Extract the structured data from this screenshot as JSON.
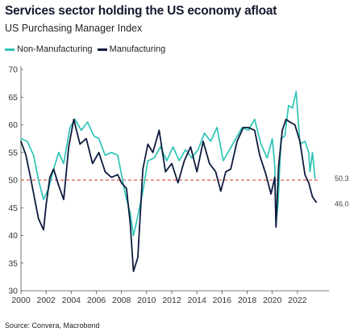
{
  "title": "Services sector holding the US economy afloat",
  "subtitle": "US Purchasing Manager Index",
  "source": "Source: Convera, Macrobond",
  "colors": {
    "non_manufacturing": "#2ec4b6",
    "manufacturing": "#0f1b3d",
    "reference_line": "#e05a4f"
  },
  "chart_data": {
    "type": "line",
    "title": "Services sector holding the US economy afloat",
    "subtitle": "US Purchasing Manager Index",
    "xlabel": "",
    "ylabel": "",
    "xlim": [
      2000,
      2024
    ],
    "ylim": [
      30,
      70
    ],
    "x_ticks": [
      "2000",
      "2002",
      "2004",
      "2006",
      "2008",
      "2010",
      "2012",
      "2014",
      "2016",
      "2018",
      "2020",
      "2022"
    ],
    "y_ticks": [
      30,
      35,
      40,
      45,
      50,
      55,
      60,
      65,
      70
    ],
    "reference_line": {
      "y": 50,
      "style": "dashed"
    },
    "legend_position": "top-left",
    "grid": false,
    "end_labels": [
      "50.3",
      "46.0"
    ],
    "series": [
      {
        "name": "Non-Manufacturing",
        "x": [
          2000.0,
          2000.5,
          2001.0,
          2001.4,
          2001.8,
          2002.2,
          2002.6,
          2003.0,
          2003.4,
          2003.9,
          2004.3,
          2004.8,
          2005.3,
          2005.8,
          2006.2,
          2006.7,
          2007.2,
          2007.7,
          2008.0,
          2008.3,
          2008.7,
          2008.95,
          2009.3,
          2009.7,
          2010.1,
          2010.6,
          2011.1,
          2011.6,
          2012.1,
          2012.6,
          2013.1,
          2013.6,
          2014.1,
          2014.6,
          2015.1,
          2015.6,
          2016.1,
          2016.6,
          2017.1,
          2017.6,
          2018.1,
          2018.6,
          2019.1,
          2019.6,
          2020.0,
          2020.2,
          2020.3,
          2020.45,
          2020.7,
          2021.0,
          2021.3,
          2021.6,
          2021.9,
          2022.2,
          2022.6,
          2022.9,
          2023.0,
          2023.2,
          2023.4
        ],
        "y": [
          57.5,
          57.0,
          54.5,
          50.0,
          46.5,
          48.5,
          52.0,
          55.0,
          53.0,
          59.5,
          61.0,
          59.0,
          60.5,
          58.0,
          57.5,
          54.5,
          55.0,
          54.5,
          51.0,
          47.5,
          44.0,
          40.0,
          43.5,
          48.0,
          53.5,
          54.0,
          56.0,
          53.5,
          56.0,
          53.5,
          55.5,
          54.0,
          55.5,
          58.5,
          57.0,
          59.5,
          53.5,
          55.5,
          57.5,
          59.5,
          59.0,
          61.0,
          56.5,
          54.0,
          57.5,
          52.5,
          42.0,
          45.5,
          57.5,
          58.0,
          63.5,
          63.0,
          66.0,
          56.5,
          57.0,
          55.0,
          51.5,
          55.0,
          50.3
        ]
      },
      {
        "name": "Manufacturing",
        "x": [
          2000.0,
          2000.4,
          2000.8,
          2001.1,
          2001.4,
          2001.8,
          2002.0,
          2002.3,
          2002.6,
          2003.0,
          2003.4,
          2003.8,
          2004.2,
          2004.7,
          2005.2,
          2005.7,
          2006.2,
          2006.7,
          2007.2,
          2007.7,
          2008.0,
          2008.4,
          2008.7,
          2008.95,
          2009.3,
          2009.7,
          2010.1,
          2010.5,
          2011.0,
          2011.5,
          2012.0,
          2012.5,
          2013.0,
          2013.5,
          2014.0,
          2014.5,
          2015.0,
          2015.5,
          2015.9,
          2016.3,
          2016.7,
          2017.2,
          2017.7,
          2018.1,
          2018.6,
          2019.0,
          2019.5,
          2019.9,
          2020.2,
          2020.3,
          2020.5,
          2020.8,
          2021.1,
          2021.4,
          2021.8,
          2022.2,
          2022.6,
          2022.9,
          2023.2,
          2023.5
        ],
        "y": [
          57.0,
          54.5,
          50.0,
          46.5,
          43.0,
          41.0,
          45.5,
          50.5,
          52.0,
          49.0,
          46.5,
          56.0,
          61.0,
          56.5,
          57.5,
          53.0,
          55.0,
          51.5,
          50.5,
          51.0,
          49.5,
          48.5,
          42.0,
          33.5,
          36.0,
          52.0,
          56.5,
          55.0,
          59.0,
          51.5,
          53.0,
          49.5,
          53.5,
          56.0,
          51.5,
          57.0,
          53.0,
          51.5,
          48.0,
          51.5,
          52.0,
          57.0,
          59.5,
          59.5,
          59.0,
          54.5,
          51.0,
          47.5,
          50.5,
          41.5,
          52.5,
          59.0,
          61.0,
          60.5,
          60.0,
          57.0,
          51.0,
          49.5,
          47.0,
          46.0
        ]
      }
    ]
  }
}
